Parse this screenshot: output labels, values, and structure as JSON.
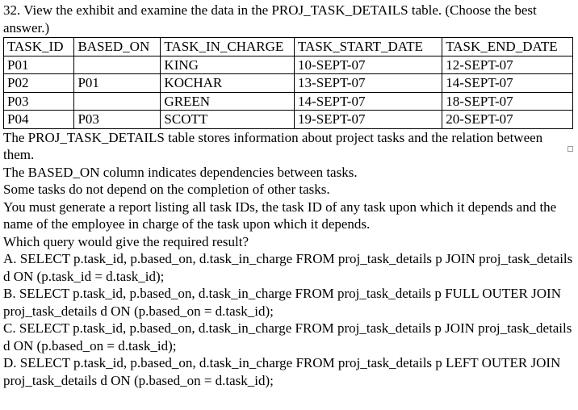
{
  "question": "32. View the exhibit and examine the data in the PROJ_TASK_DETAILS table. (Choose the best answer.)",
  "table": {
    "headers": [
      "TASK_ID",
      "BASED_ON",
      "TASK_IN_CHARGE",
      "TASK_START_DATE",
      "TASK_END_DATE"
    ],
    "rows": [
      [
        "P01",
        "",
        "KING",
        "10-SEPT-07",
        "12-SEPT-07"
      ],
      [
        "P02",
        "P01",
        "KOCHAR",
        "13-SEPT-07",
        "14-SEPT-07"
      ],
      [
        "P03",
        "",
        "GREEN",
        "14-SEPT-07",
        "18-SEPT-07"
      ],
      [
        "P04",
        "P03",
        "SCOTT",
        "19-SEPT-07",
        "20-SEPT-07"
      ]
    ]
  },
  "paragraphs": [
    "The PROJ_TASK_DETAILS table stores information about project tasks and the relation between them.",
    "The BASED_ON column indicates dependencies between tasks.",
    "Some tasks do not depend on the completion of other tasks.",
    "You must generate a report listing all task IDs, the task ID of any task upon which it depends and the name of the employee in charge of the task upon which it depends.",
    "Which query would give the required result?"
  ],
  "options": [
    "A. SELECT p.task_id, p.based_on, d.task_in_charge FROM proj_task_details p JOIN proj_task_details d ON (p.task_id = d.task_id);",
    "B. SELECT p.task_id, p.based_on, d.task_in_charge FROM proj_task_details p FULL OUTER JOIN proj_task_details d ON (p.based_on = d.task_id);",
    "C. SELECT p.task_id, p.based_on, d.task_in_charge FROM proj_task_details p JOIN proj_task_details d ON (p.based_on = d.task_id);",
    "D. SELECT p.task_id, p.based_on, d.task_in_charge FROM proj_task_details p LEFT OUTER JOIN proj_task_details d ON (p.based_on = d.task_id);"
  ]
}
